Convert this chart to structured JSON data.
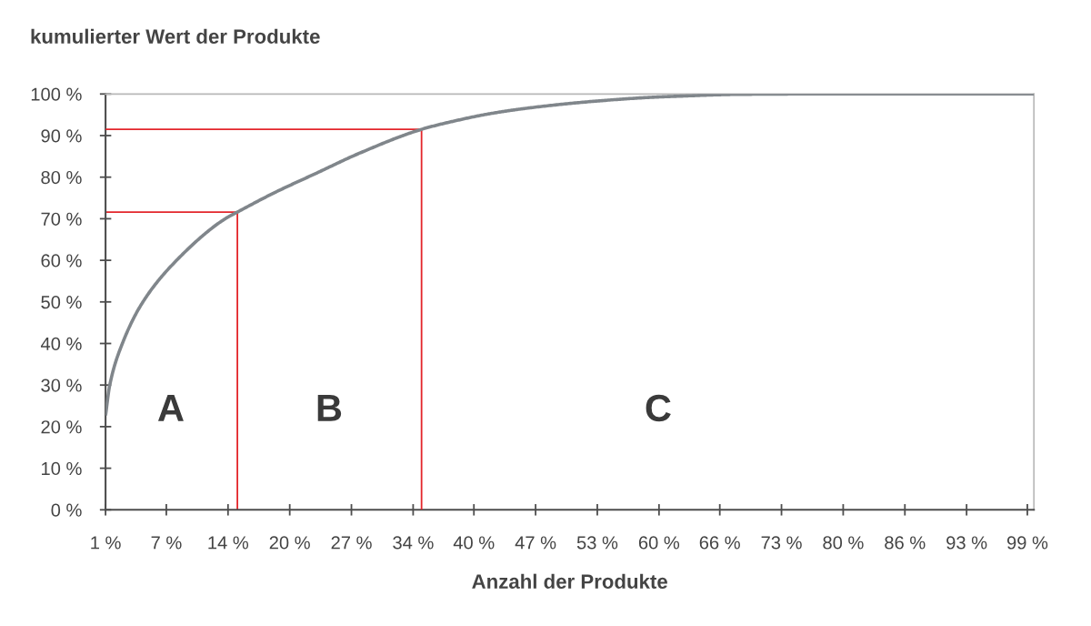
{
  "chart_data": {
    "type": "line",
    "ylabel": "kumulierter Wert der Produkte",
    "xlabel": "Anzahl der Produkte",
    "xlim": [
      0.7,
      100
    ],
    "ylim": [
      0,
      100
    ],
    "xticks": [
      {
        "value": 0.7,
        "label": "1 %"
      },
      {
        "value": 7.2,
        "label": "7 %"
      },
      {
        "value": 13.8,
        "label": "14 %"
      },
      {
        "value": 20.4,
        "label": "20 %"
      },
      {
        "value": 27.0,
        "label": "27 %"
      },
      {
        "value": 33.6,
        "label": "34 %"
      },
      {
        "value": 40.1,
        "label": "40 %"
      },
      {
        "value": 46.7,
        "label": "47 %"
      },
      {
        "value": 53.3,
        "label": "53 %"
      },
      {
        "value": 59.9,
        "label": "60 %"
      },
      {
        "value": 66.4,
        "label": "66 %"
      },
      {
        "value": 73.0,
        "label": "73 %"
      },
      {
        "value": 79.6,
        "label": "80 %"
      },
      {
        "value": 86.2,
        "label": "86 %"
      },
      {
        "value": 92.8,
        "label": "93 %"
      },
      {
        "value": 99.3,
        "label": "99 %"
      }
    ],
    "yticks": [
      {
        "value": 0,
        "label": "0 %"
      },
      {
        "value": 10,
        "label": "10 %"
      },
      {
        "value": 20,
        "label": "20 %"
      },
      {
        "value": 30,
        "label": "30 %"
      },
      {
        "value": 40,
        "label": "40 %"
      },
      {
        "value": 50,
        "label": "50 %"
      },
      {
        "value": 60,
        "label": "60 %"
      },
      {
        "value": 70,
        "label": "70 %"
      },
      {
        "value": 80,
        "label": "80 %"
      },
      {
        "value": 90,
        "label": "90 %"
      },
      {
        "value": 100,
        "label": "100 %"
      }
    ],
    "series": [
      {
        "color": "#e3262b",
        "x": [
          0.7,
          14.8,
          14.8
        ],
        "values": [
          71.6,
          71.6,
          0
        ]
      },
      {
        "color": "#e3262b",
        "x": [
          0.7,
          34.5,
          34.5
        ],
        "values": [
          91.5,
          91.5,
          0
        ]
      },
      {
        "color": "#80868b",
        "x": [
          0.7,
          1.15,
          2.5,
          4.7,
          8.3,
          13.5,
          14.8,
          18.8,
          23.2,
          27.9,
          34.5,
          38.0,
          41.9,
          46.2,
          52.7,
          59.1,
          62.4,
          68.0,
          75.0,
          100
        ],
        "values": [
          22.7,
          30.0,
          40.0,
          50.0,
          60.0,
          70.0,
          71.6,
          76.3,
          80.9,
          85.8,
          91.5,
          93.5,
          95.3,
          96.7,
          98.2,
          99.2,
          99.5,
          99.9,
          100,
          100
        ]
      }
    ],
    "annotations": [
      "A",
      "B",
      "C"
    ]
  }
}
